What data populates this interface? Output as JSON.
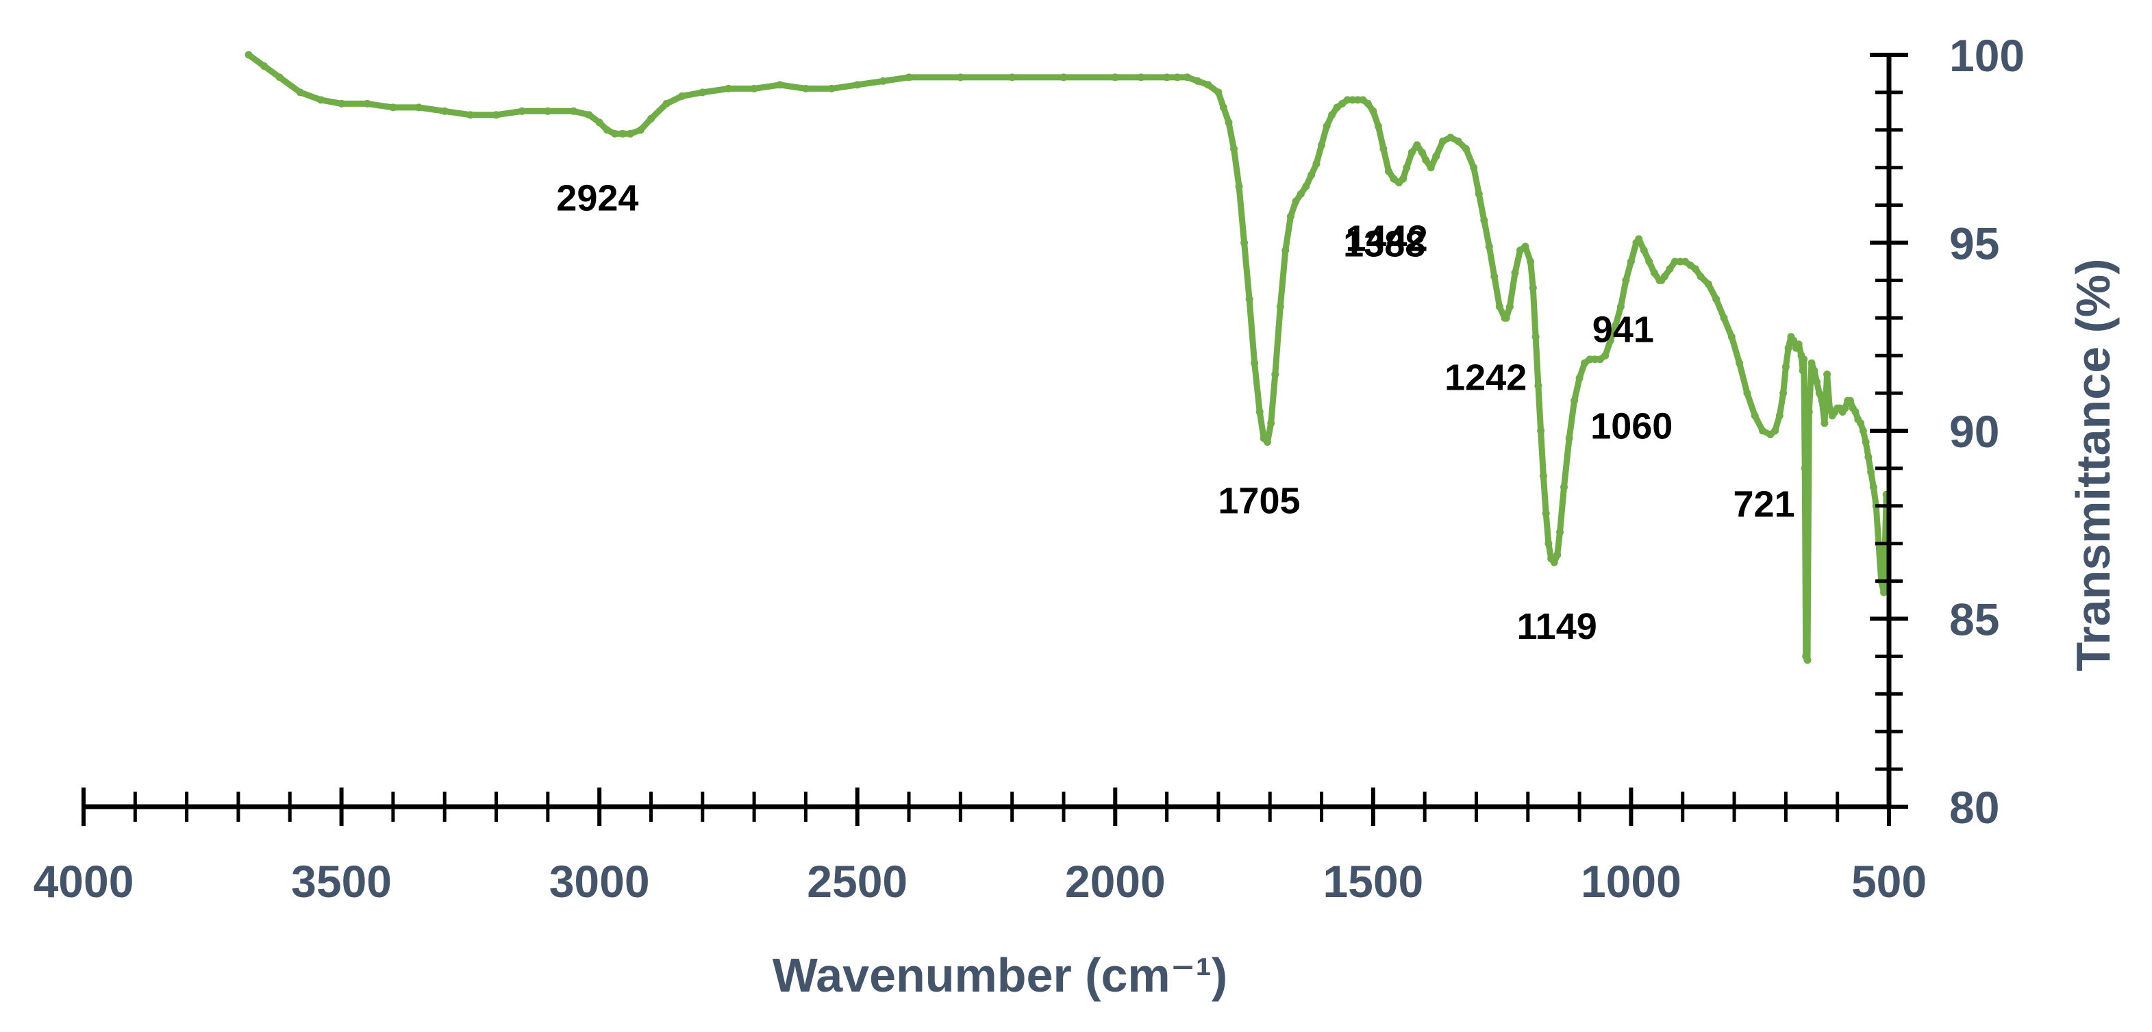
{
  "chart_data": {
    "type": "line",
    "title": "",
    "xlabel": "Wavenumber (cm⁻¹)",
    "ylabel": "Transmittance (%)",
    "xlim": [
      4000,
      500
    ],
    "x_reversed": true,
    "ylim": [
      80,
      100
    ],
    "y_axis_position": "right",
    "grid": false,
    "legend": "none",
    "xticks": [
      4000,
      3500,
      3000,
      2500,
      2000,
      1500,
      1000,
      500
    ],
    "xtick_labels": [
      "4000",
      "3500",
      "3000",
      "2500",
      "2000",
      "1500",
      "1000",
      "500"
    ],
    "yticks": [
      100,
      95,
      90,
      85,
      80
    ],
    "ytick_labels": [
      "100",
      "95",
      "90",
      "85",
      "80"
    ],
    "colors": {
      "line": "#70ad47",
      "axis": "#000000",
      "axis_text": "#44546a",
      "peak_text": "#000000"
    },
    "series": [
      {
        "x": [
          3680,
          3650,
          3620,
          3580,
          3540,
          3500,
          3450,
          3400,
          3350,
          3300,
          3250,
          3200,
          3150,
          3100,
          3050,
          3020,
          3000,
          2985,
          2970,
          2955,
          2940,
          2920,
          2900,
          2870,
          2840,
          2800,
          2750,
          2700,
          2650,
          2600,
          2550,
          2500,
          2450,
          2400,
          2300,
          2200,
          2100,
          2000,
          1950,
          1900,
          1880,
          1860,
          1840,
          1820,
          1800,
          1790,
          1780,
          1770,
          1760,
          1750,
          1740,
          1730,
          1720,
          1712,
          1705,
          1698,
          1690,
          1680,
          1670,
          1660,
          1650,
          1640,
          1630,
          1620,
          1610,
          1600,
          1590,
          1580,
          1570,
          1560,
          1550,
          1540,
          1530,
          1520,
          1510,
          1500,
          1490,
          1480,
          1470,
          1460,
          1450,
          1442,
          1435,
          1425,
          1415,
          1405,
          1398,
          1388,
          1378,
          1365,
          1350,
          1335,
          1320,
          1305,
          1295,
          1285,
          1275,
          1265,
          1255,
          1245,
          1242,
          1235,
          1225,
          1215,
          1205,
          1195,
          1190,
          1185,
          1180,
          1175,
          1170,
          1165,
          1160,
          1155,
          1149,
          1143,
          1138,
          1130,
          1120,
          1110,
          1100,
          1090,
          1080,
          1070,
          1060,
          1050,
          1040,
          1030,
          1020,
          1010,
          1000,
          990,
          985,
          975,
          965,
          955,
          945,
          941,
          935,
          925,
          915,
          905,
          895,
          885,
          875,
          865,
          850,
          835,
          820,
          805,
          790,
          775,
          760,
          745,
          730,
          721,
          712,
          705,
          700,
          695,
          690,
          685,
          680,
          675,
          670,
          667,
          665,
          663,
          661,
          658,
          655,
          650,
          645,
          640,
          635,
          630,
          625,
          620,
          615,
          610,
          605,
          600,
          595,
          590,
          585,
          580,
          575,
          570,
          565,
          560,
          555,
          550,
          545,
          540,
          535,
          530,
          525,
          520,
          515,
          510,
          505
        ],
        "y": [
          100,
          99.7,
          99.4,
          99.0,
          98.8,
          98.7,
          98.7,
          98.6,
          98.6,
          98.5,
          98.4,
          98.4,
          98.5,
          98.5,
          98.5,
          98.4,
          98.2,
          98.0,
          97.9,
          97.9,
          97.9,
          98.0,
          98.3,
          98.7,
          98.9,
          99.0,
          99.1,
          99.1,
          99.2,
          99.1,
          99.1,
          99.2,
          99.3,
          99.4,
          99.4,
          99.4,
          99.4,
          99.4,
          99.4,
          99.4,
          99.4,
          99.4,
          99.3,
          99.2,
          99.0,
          98.6,
          98.2,
          97.5,
          96.5,
          95.0,
          93.5,
          91.8,
          90.5,
          89.8,
          89.7,
          90.2,
          91.5,
          93.3,
          94.8,
          95.7,
          96.1,
          96.3,
          96.5,
          96.8,
          97.1,
          97.6,
          98.1,
          98.4,
          98.6,
          98.7,
          98.8,
          98.8,
          98.8,
          98.8,
          98.7,
          98.5,
          98.1,
          97.5,
          96.9,
          96.7,
          96.6,
          96.7,
          97.0,
          97.4,
          97.6,
          97.4,
          97.2,
          97.0,
          97.3,
          97.7,
          97.8,
          97.7,
          97.5,
          97.0,
          96.3,
          95.6,
          94.9,
          94.1,
          93.3,
          93.0,
          93.0,
          93.3,
          94.2,
          94.8,
          94.9,
          94.5,
          93.8,
          92.5,
          91.2,
          90.0,
          88.8,
          87.8,
          87.0,
          86.6,
          86.5,
          86.7,
          87.3,
          88.5,
          89.8,
          90.8,
          91.4,
          91.8,
          91.9,
          91.9,
          91.9,
          92.0,
          92.4,
          92.8,
          93.3,
          94.0,
          94.5,
          95.0,
          95.1,
          94.8,
          94.5,
          94.2,
          94.0,
          94.0,
          94.1,
          94.3,
          94.5,
          94.5,
          94.5,
          94.4,
          94.3,
          94.1,
          93.9,
          93.5,
          93.0,
          92.5,
          91.8,
          91.0,
          90.4,
          90.0,
          89.9,
          90.0,
          90.4,
          91.0,
          91.7,
          92.2,
          92.5,
          92.4,
          92.2,
          92.3,
          92.0,
          91.6,
          91.9,
          89.0,
          84.0,
          83.9,
          90.5,
          91.8,
          91.6,
          91.3,
          91.0,
          90.8,
          90.2,
          91.5,
          90.6,
          90.4,
          90.5,
          90.6,
          90.6,
          90.5,
          90.6,
          90.8,
          90.8,
          90.6,
          90.5,
          90.3,
          90.2,
          90.0,
          89.7,
          89.3,
          88.9,
          88.5,
          88.0,
          87.0,
          86.0,
          85.7,
          88.3
        ]
      }
    ],
    "annotations": [
      {
        "text": "2924",
        "x": 2924,
        "y": 97.9
      },
      {
        "text": "1705",
        "x": 1705,
        "y": 89.7
      },
      {
        "text": "1442",
        "x": 1442,
        "y": 96.6
      },
      {
        "text": "1388",
        "x": 1388,
        "y": 97.0
      },
      {
        "text": "1242",
        "x": 1242,
        "y": 93.0
      },
      {
        "text": "1149",
        "x": 1149,
        "y": 86.5
      },
      {
        "text": "1060",
        "x": 1060,
        "y": 91.9
      },
      {
        "text": "941",
        "x": 941,
        "y": 94.0
      },
      {
        "text": "721",
        "x": 721,
        "y": 89.9
      }
    ]
  }
}
